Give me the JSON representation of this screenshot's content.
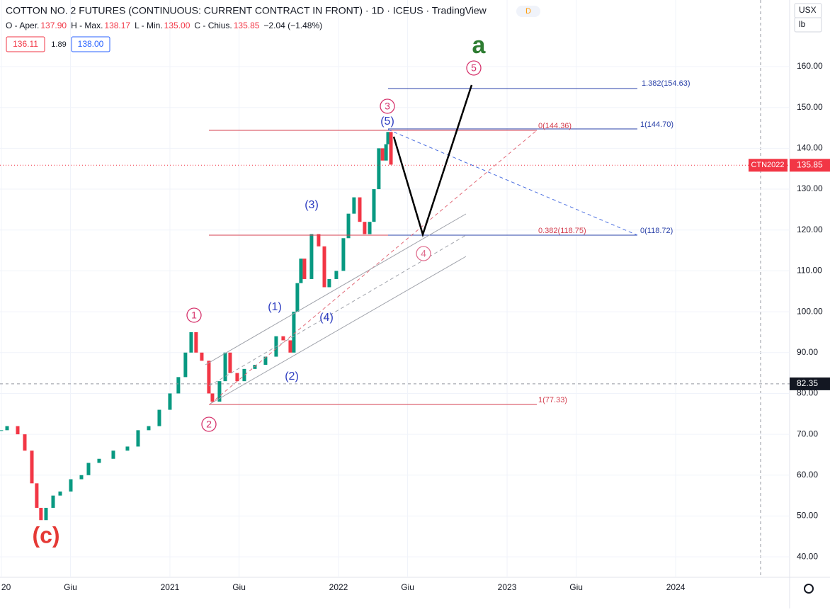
{
  "chart_data": {
    "type": "candle-line",
    "title": "COTTON NO. 2 FUTURES (CONTINUOUS: CURRENT CONTRACT IN FRONT) · 1D · ICEUS · TradingView",
    "ohlc": [
      "O - Aper.",
      "137.90",
      "H - Max.",
      "138.17",
      "L - Min.",
      "135.00",
      "C - Chius.",
      "135.85",
      "−2.04 (−1.48%)"
    ],
    "boxes": [
      "136.11",
      "1.89",
      "138.00"
    ],
    "currency": "USX",
    "unit": "lb",
    "symbol_tag": "CTN2022",
    "last_price": 135.85,
    "crosshair_price": 82.35,
    "up_color": "#089981",
    "down_color": "#f23645",
    "x": [
      2020.0,
      2020.034,
      2020.097,
      2020.139,
      2020.181,
      2020.21,
      2020.235,
      2020.265,
      2020.307,
      2020.349,
      2020.412,
      2020.475,
      2020.517,
      2020.58,
      2020.664,
      2020.748,
      2020.811,
      2020.874,
      2020.937,
      2021.0,
      2021.05,
      2021.092,
      2021.126,
      2021.155,
      2021.189,
      2021.231,
      2021.252,
      2021.294,
      2021.328,
      2021.357,
      2021.399,
      2021.441,
      2021.504,
      2021.567,
      2021.63,
      2021.672,
      2021.714,
      2021.735,
      2021.756,
      2021.777,
      2021.798,
      2021.84,
      2021.882,
      2021.916,
      2021.945,
      2021.987,
      2022.029,
      2022.059,
      2022.092,
      2022.126,
      2022.155,
      2022.185,
      2022.21,
      2022.239,
      2022.261,
      2022.282,
      2022.294,
      2022.311
    ],
    "values": [
      71,
      72,
      70,
      66,
      58,
      52,
      49,
      52,
      55,
      56,
      59,
      60,
      63,
      64,
      66,
      67,
      71,
      72,
      76,
      80,
      84,
      90,
      95,
      90,
      88,
      80,
      78,
      83,
      90,
      85,
      83,
      86,
      87,
      89,
      94,
      93,
      90,
      100,
      107,
      113,
      108,
      119,
      116,
      106,
      108,
      110,
      118,
      124,
      128,
      122,
      119,
      122,
      130,
      140,
      137,
      141,
      144,
      136
    ],
    "xlim": [
      2019.992,
      2024.676
    ],
    "ylim": [
      35,
      176.3
    ],
    "xticks": [
      {
        "value": 2020,
        "label": "20"
      },
      {
        "value": 2020.41,
        "label": "Giu"
      },
      2021,
      {
        "value": 2021.41,
        "label": "Giu"
      },
      2022,
      {
        "value": 2022.41,
        "label": "Giu"
      },
      2023,
      {
        "value": 2023.41,
        "label": "Giu"
      },
      2024
    ],
    "yticks": [
      {
        "value": 40,
        "label": "40.00"
      },
      {
        "value": 50,
        "label": "50.00"
      },
      {
        "value": 60,
        "label": "60.00"
      },
      {
        "value": 70,
        "label": "70.00"
      },
      {
        "value": 80,
        "label": "80.00"
      },
      {
        "value": 90,
        "label": "90.00"
      },
      {
        "value": 100,
        "label": "100.00"
      },
      {
        "value": 110,
        "label": "110.00"
      },
      {
        "value": 120,
        "label": "120.00"
      },
      {
        "value": 130,
        "label": "130.00"
      },
      {
        "value": 140,
        "label": "140.00"
      },
      {
        "value": 150,
        "label": "150.00"
      },
      {
        "value": 160,
        "label": "160.00"
      }
    ],
    "grid": true,
    "annotations": [
      "a",
      "5",
      "3",
      "(5)",
      "(3)",
      "(1)",
      "1",
      "(4)",
      "(2)",
      "2",
      "4",
      "(c)",
      "1.382(154.63)",
      "0(144.36)",
      "1(144.70)",
      "0.382(118.75)",
      "0(118.72)",
      "1(77.33)"
    ]
  }
}
